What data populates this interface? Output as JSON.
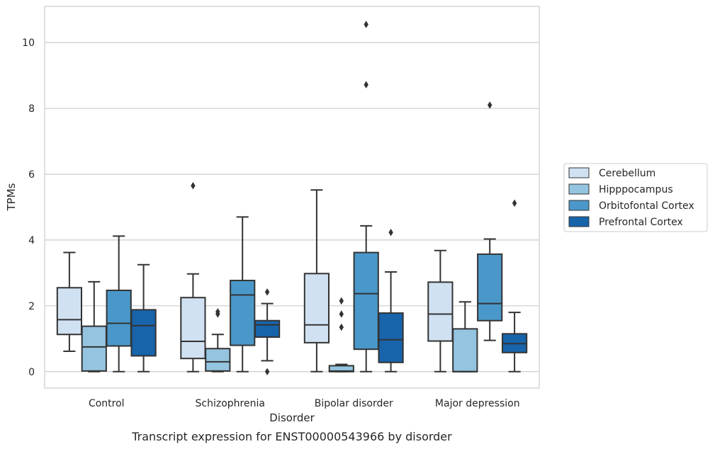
{
  "caption": "Transcript expression for ENST00000543966 by disorder",
  "chart_data": {
    "type": "box",
    "title": "",
    "xlabel": "Disorder",
    "ylabel": "TPMs",
    "ylim": [
      -0.5,
      11.1
    ],
    "yticks": [
      0,
      2,
      4,
      6,
      8,
      10
    ],
    "grid": "y",
    "legend_position": "right",
    "categories": [
      "Control",
      "Schizophrenia",
      "Bipolar disorder",
      "Major depression"
    ],
    "series": [
      {
        "name": "Cerebellum",
        "color": "#d0e1f2",
        "boxes": [
          {
            "whislo": 0.62,
            "q1": 1.13,
            "med": 1.58,
            "q3": 2.55,
            "whishi": 3.62,
            "fliers": []
          },
          {
            "whislo": 0.0,
            "q1": 0.4,
            "med": 0.92,
            "q3": 2.25,
            "whishi": 2.97,
            "fliers": [
              5.65
            ]
          },
          {
            "whislo": 0.0,
            "q1": 0.88,
            "med": 1.42,
            "q3": 2.98,
            "whishi": 5.52,
            "fliers": []
          },
          {
            "whislo": 0.0,
            "q1": 0.93,
            "med": 1.75,
            "q3": 2.72,
            "whishi": 3.68,
            "fliers": []
          }
        ]
      },
      {
        "name": "Hipppocampus",
        "color": "#94c4df",
        "boxes": [
          {
            "whislo": 0.0,
            "q1": 0.02,
            "med": 0.75,
            "q3": 1.38,
            "whishi": 2.73,
            "fliers": []
          },
          {
            "whislo": 0.0,
            "q1": 0.02,
            "med": 0.3,
            "q3": 0.7,
            "whishi": 1.13,
            "fliers": [
              1.75,
              1.82
            ]
          },
          {
            "whislo": 0.0,
            "q1": 0.0,
            "med": 0.02,
            "q3": 0.18,
            "whishi": 0.22,
            "fliers": [
              1.35,
              1.75,
              2.15
            ]
          },
          {
            "whislo": 0.0,
            "q1": 0.0,
            "med": 0.0,
            "q3": 1.3,
            "whishi": 2.12,
            "fliers": []
          }
        ]
      },
      {
        "name": "Orbitofontal Cortex",
        "color": "#4a98c9",
        "boxes": [
          {
            "whislo": 0.0,
            "q1": 0.78,
            "med": 1.47,
            "q3": 2.47,
            "whishi": 4.12,
            "fliers": []
          },
          {
            "whislo": 0.0,
            "q1": 0.8,
            "med": 2.33,
            "q3": 2.77,
            "whishi": 4.7,
            "fliers": []
          },
          {
            "whislo": 0.0,
            "q1": 0.68,
            "med": 2.37,
            "q3": 3.62,
            "whishi": 4.43,
            "fliers": [
              8.72,
              10.55
            ]
          },
          {
            "whislo": 0.95,
            "q1": 1.55,
            "med": 2.07,
            "q3": 3.57,
            "whishi": 4.03,
            "fliers": [
              8.1
            ]
          }
        ]
      },
      {
        "name": "Prefrontal Cortex",
        "color": "#1764ab",
        "boxes": [
          {
            "whislo": 0.0,
            "q1": 0.48,
            "med": 1.4,
            "q3": 1.88,
            "whishi": 3.25,
            "fliers": []
          },
          {
            "whislo": 0.33,
            "q1": 1.05,
            "med": 1.42,
            "q3": 1.55,
            "whishi": 2.07,
            "fliers": [
              0.0,
              2.42
            ]
          },
          {
            "whislo": 0.0,
            "q1": 0.28,
            "med": 0.97,
            "q3": 1.78,
            "whishi": 3.03,
            "fliers": [
              4.23
            ]
          },
          {
            "whislo": 0.0,
            "q1": 0.58,
            "med": 0.85,
            "q3": 1.15,
            "whishi": 1.8,
            "fliers": [
              5.12
            ]
          }
        ]
      }
    ]
  }
}
